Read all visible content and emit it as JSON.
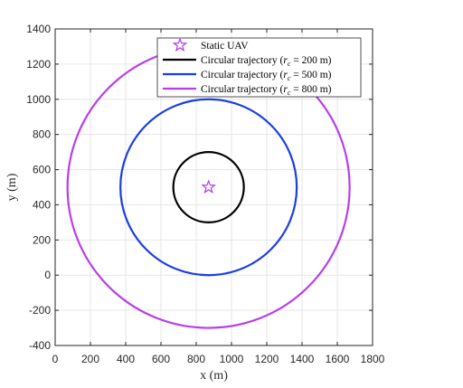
{
  "chart_data": {
    "type": "line",
    "xlabel": "x (m)",
    "ylabel": "y (m)",
    "xlim": [
      0,
      1800
    ],
    "ylim": [
      -400,
      1400
    ],
    "xticks": [
      0,
      200,
      400,
      600,
      800,
      1000,
      1200,
      1400,
      1600,
      1800
    ],
    "yticks": [
      -400,
      -200,
      0,
      200,
      400,
      600,
      800,
      1000,
      1200,
      1400
    ],
    "grid": true,
    "legend_position": "top-right",
    "series": [
      {
        "name": "Static UAV",
        "kind": "marker",
        "marker": "star",
        "x": 870,
        "y": 500,
        "color": "#b040e8"
      },
      {
        "name": "Circular trajectory (r_c = 200 m)",
        "kind": "circle",
        "center": [
          870,
          500
        ],
        "radius": 200,
        "color": "#000000"
      },
      {
        "name": "Circular trajectory (r_c = 500 m)",
        "kind": "circle",
        "center": [
          870,
          500
        ],
        "radius": 500,
        "color": "#1a3ee6"
      },
      {
        "name": "Circular trajectory (r_c = 800 m)",
        "kind": "circle",
        "center": [
          870,
          500
        ],
        "radius": 800,
        "color": "#b93cec"
      }
    ]
  },
  "legend": {
    "entries": [
      {
        "prefix": "Static UAV",
        "sub": "",
        "suffix": ""
      },
      {
        "prefix": "Circular trajectory (",
        "sub": "c",
        "suffix": " = 200 m)"
      },
      {
        "prefix": "Circular trajectory (",
        "sub": "c",
        "suffix": " = 500 m)"
      },
      {
        "prefix": "Circular trajectory (",
        "sub": "c",
        "suffix": " = 800 m)"
      }
    ]
  }
}
